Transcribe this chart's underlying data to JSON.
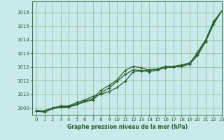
{
  "xlabel": "Graphe pression niveau de la mer (hPa)",
  "ylim": [
    1008.5,
    1016.8
  ],
  "xlim": [
    -0.5,
    23
  ],
  "yticks": [
    1009,
    1010,
    1011,
    1012,
    1013,
    1014,
    1015,
    1016
  ],
  "xticks": [
    0,
    1,
    2,
    3,
    4,
    5,
    6,
    7,
    8,
    9,
    10,
    11,
    12,
    13,
    14,
    15,
    16,
    17,
    18,
    19,
    20,
    21,
    22,
    23
  ],
  "background_color": "#c8eaea",
  "grid_color": "#88bb88",
  "line_color": "#2a5e2a",
  "marker_color": "#2a5e2a",
  "series1": [
    1008.8,
    1008.8,
    1009.0,
    1009.15,
    1009.15,
    1009.4,
    1009.6,
    1009.85,
    1010.0,
    1010.2,
    1010.5,
    1010.95,
    1011.65,
    1011.7,
    1011.8,
    1011.85,
    1011.95,
    1012.0,
    1012.05,
    1012.2,
    1013.1,
    1014.0,
    1015.35,
    1016.1
  ],
  "series2": [
    1008.8,
    1008.75,
    1009.0,
    1009.1,
    1009.1,
    1009.3,
    1009.5,
    1009.7,
    1010.3,
    1010.65,
    1011.05,
    1011.75,
    1012.05,
    1011.95,
    1011.75,
    1011.85,
    1012.05,
    1012.05,
    1012.15,
    1012.3,
    1012.95,
    1013.9,
    1015.25,
    1016.1
  ],
  "series3": [
    1008.75,
    1008.7,
    1008.95,
    1009.05,
    1009.05,
    1009.25,
    1009.45,
    1009.6,
    1010.1,
    1010.45,
    1010.95,
    1011.45,
    1011.8,
    1011.75,
    1011.65,
    1011.78,
    1011.95,
    1012.0,
    1012.1,
    1012.2,
    1012.85,
    1013.85,
    1015.15,
    1016.1
  ]
}
